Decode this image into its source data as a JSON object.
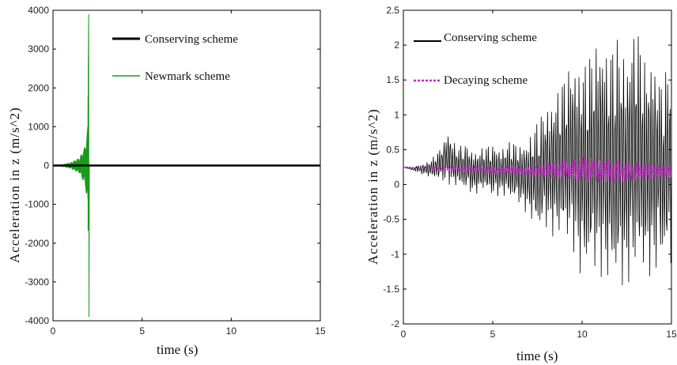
{
  "colors": {
    "conserving": "#000000",
    "newmark": "#1a9a1a",
    "decaying": "#cc22cc"
  },
  "chart_data": [
    {
      "type": "line",
      "xlabel": "time (s)",
      "ylabel": "Acceleration in z (m/s^2)",
      "xlim": [
        0,
        15
      ],
      "ylim": [
        -4000,
        4000
      ],
      "xticks": [
        "0",
        "5",
        "10",
        "15"
      ],
      "yticks": [
        "-4000",
        "-3000",
        "-2000",
        "-1000",
        "0",
        "1000",
        "2000",
        "3000",
        "4000"
      ],
      "grid": false,
      "legend_position": "top-right",
      "series": [
        {
          "name": "Conserving scheme",
          "color": "#000000",
          "style": "solid-thick",
          "x": [
            0,
            15
          ],
          "y": [
            0,
            0
          ]
        },
        {
          "name": "Newmark scheme",
          "color": "#1a9a1a",
          "style": "solid",
          "description_points": {
            "x": [
              0,
              0.5,
              1.0,
              1.5,
              1.8,
              1.95,
              2.0,
              2.05,
              2.1
            ],
            "envelope": [
              10,
              30,
              80,
              200,
              500,
              1000,
              3900,
              -3900,
              0
            ]
          }
        }
      ]
    },
    {
      "type": "line",
      "xlabel": "time (s)",
      "ylabel": "Acceleration in z (m/s^2)",
      "xlim": [
        0,
        15
      ],
      "ylim": [
        -2,
        2.5
      ],
      "xticks": [
        "0",
        "5",
        "10",
        "15"
      ],
      "yticks": [
        "-2",
        "-1.5",
        "-1",
        "-0.5",
        "0",
        "0.5",
        "1",
        "1.5",
        "2",
        "2.5"
      ],
      "grid": false,
      "legend_position": "top-left",
      "series": [
        {
          "name": "Conserving scheme",
          "color": "#000000",
          "style": "solid",
          "x": [
            0,
            0.5,
            1.0,
            1.5,
            2.0,
            2.5,
            3.0,
            3.5,
            4.0,
            4.5,
            5.0,
            5.5,
            6.0,
            6.5,
            7.0,
            7.5,
            8.0,
            8.5,
            9.0,
            9.5,
            10.0,
            10.5,
            11.0,
            11.5,
            12.0,
            12.5,
            13.0,
            13.5,
            14.0,
            14.5,
            15.0
          ],
          "y": [
            0.25,
            0.25,
            0.3,
            0.35,
            0.5,
            0.8,
            0.55,
            0.6,
            0.5,
            0.55,
            0.6,
            0.55,
            0.65,
            0.6,
            0.7,
            0.95,
            1.2,
            1.35,
            1.6,
            1.9,
            1.8,
            1.95,
            2.3,
            2.0,
            2.2,
            2.0,
            2.45,
            1.85,
            2.0,
            1.5,
            2.0
          ],
          "y_min": [
            0.25,
            0.2,
            0.15,
            0.1,
            0.05,
            0.0,
            -0.05,
            -0.1,
            -0.15,
            -0.1,
            -0.2,
            -0.15,
            -0.25,
            -0.3,
            -0.45,
            -0.75,
            -0.65,
            -0.8,
            -0.9,
            -0.95,
            -1.45,
            -1.35,
            -1.3,
            -1.5,
            -1.6,
            -1.45,
            -1.35,
            -1.4,
            -1.3,
            -1.2,
            -1.3
          ]
        },
        {
          "name": "Decaying scheme",
          "color": "#cc22cc",
          "style": "dotted",
          "x": [
            0,
            1,
            2,
            3,
            4,
            5,
            6,
            7,
            8,
            9,
            10,
            11,
            12,
            13,
            14,
            15
          ],
          "y": [
            0.25,
            0.24,
            0.26,
            0.25,
            0.27,
            0.24,
            0.28,
            0.25,
            0.32,
            0.35,
            0.4,
            0.38,
            0.35,
            0.32,
            0.3,
            0.28
          ],
          "y_min": [
            0.25,
            0.24,
            0.22,
            0.2,
            0.18,
            0.16,
            0.15,
            0.13,
            0.1,
            0.08,
            0.05,
            0.03,
            0.02,
            0.05,
            0.08,
            0.1
          ]
        }
      ]
    }
  ]
}
